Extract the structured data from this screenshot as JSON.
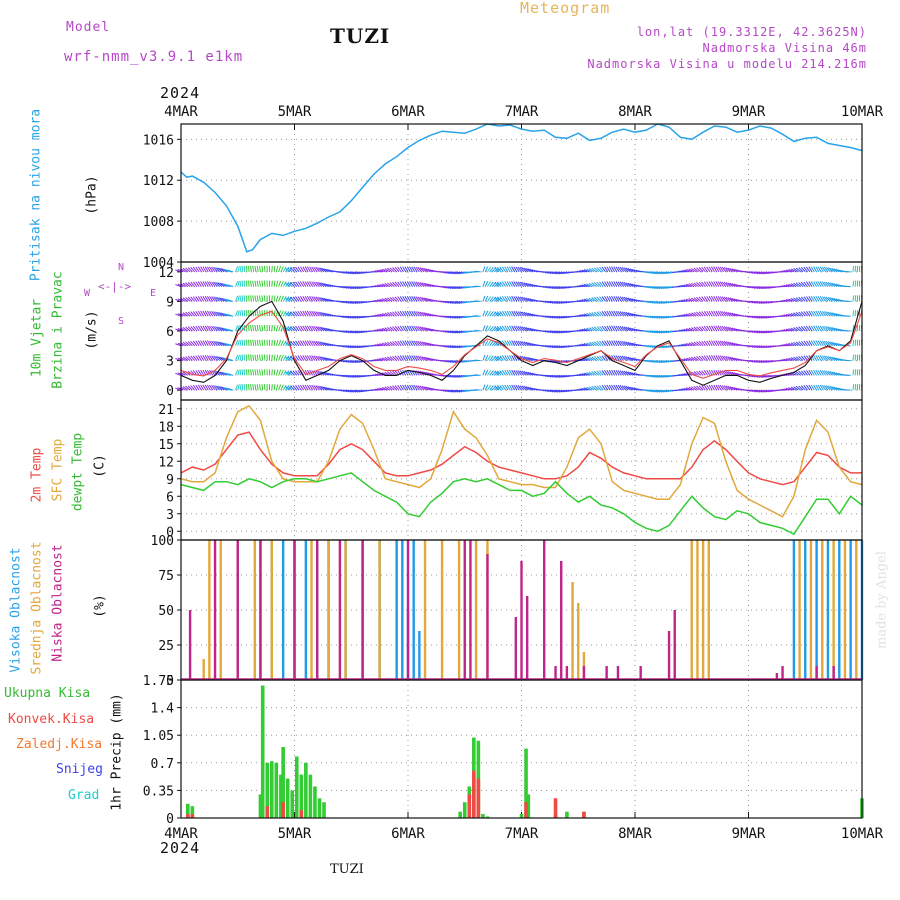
{
  "header": {
    "model_label": "Model",
    "model_name": "wrf-nmm_v3.9.1 e1km",
    "station": "TUZI",
    "meteogram": "Meteogram",
    "lonlat": "lon,lat (19.3312E, 42.3625N)",
    "elevation": "Nadmorska Visina 46m",
    "model_elevation": "Nadmorska Visina u modelu 214.216m",
    "year_top": "2024",
    "year_bottom": "2024",
    "footer_station": "TUZI",
    "watermark": "made by Angel"
  },
  "colors": {
    "pressure": "#29a3e8",
    "t2m": "#ef4a45",
    "sfc": "#e2a83c",
    "dewpt": "#33cc33",
    "high_cloud": "#1e9be6",
    "mid_cloud": "#e2a83c",
    "low_cloud": "#c0238a",
    "total_precip": "#33cc33",
    "conv_precip": "#ef4a45",
    "mix_precip": "#7a7a2a",
    "snow": "#4040ee",
    "grad": "#22cccc",
    "header_purple": "#b648c8",
    "meteogram": "#e6b45a"
  },
  "axis": {
    "x_ticks": [
      "4MAR",
      "5MAR",
      "6MAR",
      "7MAR",
      "8MAR",
      "9MAR",
      "10MAR"
    ]
  },
  "panels": {
    "pressure": {
      "label": "Pritisak na nivou mora",
      "unit": "(hPa)",
      "ticks": [
        "1016",
        "1012",
        "1008",
        "1004"
      ],
      "tick_values": [
        1016,
        1012,
        1008,
        1004
      ],
      "ylim": [
        1004,
        1017.5
      ]
    },
    "wind": {
      "label1": "10m Vjetar",
      "label2": "Brzina i Pravac",
      "unit": "(m/s)",
      "compass_n": "N",
      "compass_s": "S",
      "compass_w": "W",
      "compass_e": "E",
      "ticks": [
        "12",
        "9",
        "6",
        "3",
        "0"
      ],
      "tick_values": [
        12,
        9,
        6,
        3,
        0
      ],
      "ylim": [
        -1,
        13
      ]
    },
    "temp": {
      "label_t2m": "2m Temp",
      "label_sfc": "SFC Temp",
      "label_dew": "dewpt Temp",
      "unit": "(C)",
      "ticks": [
        "21",
        "18",
        "15",
        "12",
        "9",
        "6",
        "3",
        "0"
      ],
      "tick_values": [
        21,
        18,
        15,
        12,
        9,
        6,
        3,
        0
      ],
      "ylim": [
        -1.5,
        22.5
      ]
    },
    "cloud": {
      "label_high": "Visoka Oblacnost",
      "label_mid": "Srednja Oblacnost",
      "label_low": "Niska Oblacnost",
      "unit": "(%)",
      "ticks": [
        "100",
        "75",
        "50",
        "25",
        "0"
      ],
      "tick_values": [
        100,
        75,
        50,
        25,
        0
      ],
      "ylim": [
        0,
        100
      ]
    },
    "precip": {
      "label_total": "Ukupna Kisa",
      "label_conv": "Konvek.Kisa",
      "label_frozen": "Zaledj.Kisa",
      "label_snow": "Snijeg",
      "label_grad": "Grad",
      "unit": "1hr Precip (mm)",
      "ticks": [
        "1.75",
        "1.4",
        "1.05",
        "0.7",
        "0.35",
        "0"
      ],
      "tick_values": [
        1.75,
        1.4,
        1.05,
        0.7,
        0.35,
        0
      ],
      "ylim": [
        0,
        1.75
      ]
    }
  },
  "chart_data": {
    "type": "line",
    "x_unit": "days since 4MAR 00Z",
    "xlim": [
      0,
      6
    ],
    "pressure_hpa": {
      "x": [
        0,
        0.05,
        0.1,
        0.2,
        0.3,
        0.4,
        0.5,
        0.58,
        0.63,
        0.7,
        0.8,
        0.9,
        1.0,
        1.1,
        1.2,
        1.3,
        1.4,
        1.5,
        1.6,
        1.7,
        1.8,
        1.9,
        2.0,
        2.1,
        2.2,
        2.3,
        2.4,
        2.5,
        2.6,
        2.7,
        2.8,
        2.9,
        3.0,
        3.1,
        3.2,
        3.3,
        3.4,
        3.5,
        3.6,
        3.7,
        3.8,
        3.9,
        4.0,
        4.1,
        4.2,
        4.3,
        4.4,
        4.5,
        4.6,
        4.7,
        4.8,
        4.9,
        5.0,
        5.1,
        5.2,
        5.3,
        5.4,
        5.5,
        5.6,
        5.7,
        5.8,
        5.9,
        6.0
      ],
      "y": [
        1012.8,
        1012.3,
        1012.4,
        1011.8,
        1010.8,
        1009.5,
        1007.5,
        1005.0,
        1005.2,
        1006.2,
        1006.8,
        1006.6,
        1007.0,
        1007.3,
        1007.8,
        1008.4,
        1008.9,
        1010.0,
        1011.3,
        1012.6,
        1013.6,
        1014.3,
        1015.2,
        1015.9,
        1016.4,
        1016.8,
        1016.7,
        1016.6,
        1017.0,
        1017.5,
        1017.3,
        1017.4,
        1017.0,
        1016.8,
        1016.9,
        1016.2,
        1016.1,
        1016.6,
        1015.9,
        1016.1,
        1016.7,
        1017.0,
        1016.7,
        1016.9,
        1017.5,
        1017.2,
        1016.2,
        1016.0,
        1016.7,
        1017.3,
        1017.2,
        1016.7,
        1016.9,
        1017.3,
        1017.1,
        1016.5,
        1015.8,
        1016.1,
        1016.2,
        1015.6,
        1015.4,
        1015.2,
        1014.9
      ]
    },
    "wind_speed_ms": {
      "x": [
        0,
        0.1,
        0.2,
        0.3,
        0.4,
        0.5,
        0.6,
        0.7,
        0.8,
        0.9,
        1.0,
        1.1,
        1.2,
        1.3,
        1.4,
        1.5,
        1.6,
        1.7,
        1.8,
        1.9,
        2.0,
        2.1,
        2.2,
        2.3,
        2.4,
        2.5,
        2.6,
        2.7,
        2.8,
        2.9,
        3.0,
        3.1,
        3.2,
        3.3,
        3.4,
        3.5,
        3.6,
        3.7,
        3.8,
        3.9,
        4.0,
        4.1,
        4.2,
        4.3,
        4.4,
        4.5,
        4.6,
        4.7,
        4.8,
        4.9,
        5.0,
        5.1,
        5.2,
        5.3,
        5.4,
        5.5,
        5.6,
        5.7,
        5.8,
        5.9,
        6.0
      ],
      "y": [
        1.5,
        1.0,
        0.8,
        1.5,
        3.0,
        6.0,
        7.5,
        8.5,
        9.0,
        7.0,
        3.0,
        1.0,
        1.5,
        2.0,
        3.0,
        3.5,
        3.0,
        2.0,
        1.5,
        1.5,
        2.0,
        1.8,
        1.5,
        1.0,
        2.0,
        3.5,
        4.5,
        5.5,
        5.0,
        4.0,
        3.0,
        2.5,
        3.0,
        2.8,
        2.5,
        3.0,
        3.5,
        4.0,
        3.0,
        2.5,
        2.0,
        3.5,
        4.5,
        5.0,
        3.0,
        1.0,
        0.5,
        1.0,
        1.5,
        1.5,
        1.0,
        0.8,
        1.2,
        1.5,
        1.8,
        2.5,
        4.0,
        4.5,
        4.0,
        5.0,
        9.0
      ]
    },
    "temperature_c": {
      "x": [
        0,
        0.1,
        0.2,
        0.3,
        0.4,
        0.5,
        0.6,
        0.7,
        0.8,
        0.9,
        1.0,
        1.1,
        1.2,
        1.3,
        1.4,
        1.5,
        1.6,
        1.7,
        1.8,
        1.9,
        2.0,
        2.1,
        2.2,
        2.3,
        2.4,
        2.5,
        2.6,
        2.7,
        2.8,
        2.9,
        3.0,
        3.1,
        3.2,
        3.3,
        3.4,
        3.5,
        3.6,
        3.7,
        3.8,
        3.9,
        4.0,
        4.1,
        4.2,
        4.3,
        4.4,
        4.5,
        4.6,
        4.7,
        4.8,
        4.9,
        5.0,
        5.1,
        5.2,
        5.3,
        5.4,
        5.5,
        5.6,
        5.7,
        5.8,
        5.9,
        6.0
      ],
      "series": [
        {
          "name": "2m Temp",
          "values": [
            10.0,
            11.0,
            10.5,
            11.5,
            14.0,
            16.5,
            17.0,
            14.0,
            11.5,
            10.0,
            9.5,
            9.5,
            9.5,
            11.5,
            14.0,
            15.0,
            14.0,
            12.0,
            10.0,
            9.5,
            9.5,
            10.0,
            10.5,
            11.5,
            13.0,
            14.5,
            13.5,
            12.0,
            11.0,
            10.5,
            10.0,
            9.5,
            9.0,
            9.0,
            9.5,
            11.0,
            13.5,
            12.5,
            11.0,
            10.0,
            9.5,
            9.0,
            9.0,
            9.0,
            9.0,
            11.0,
            14.0,
            15.5,
            14.0,
            12.0,
            10.0,
            9.0,
            8.5,
            8.0,
            8.5,
            11.0,
            13.5,
            13.0,
            11.0,
            10.0,
            10.0
          ]
        },
        {
          "name": "SFC Temp",
          "values": [
            9.0,
            8.5,
            8.5,
            10.0,
            16.0,
            20.5,
            21.5,
            19.0,
            12.0,
            9.0,
            8.5,
            8.5,
            8.5,
            12.0,
            17.5,
            20.0,
            18.5,
            14.0,
            9.0,
            8.5,
            8.0,
            7.5,
            9.0,
            14.0,
            20.5,
            17.5,
            16.0,
            13.0,
            9.0,
            8.5,
            8.0,
            8.0,
            7.5,
            7.5,
            11.0,
            16.0,
            17.5,
            15.0,
            8.5,
            7.0,
            6.5,
            6.0,
            5.5,
            5.5,
            8.0,
            15.0,
            19.5,
            18.5,
            12.0,
            7.0,
            5.5,
            4.5,
            3.5,
            2.5,
            6.0,
            14.0,
            19.0,
            17.0,
            11.0,
            8.5,
            8.0
          ]
        },
        {
          "name": "dewpt Temp",
          "values": [
            8.0,
            7.5,
            7.0,
            8.5,
            8.5,
            8.0,
            9.0,
            8.5,
            7.5,
            8.5,
            9.0,
            9.0,
            8.5,
            9.0,
            9.5,
            10.0,
            8.5,
            7.0,
            6.0,
            5.0,
            3.0,
            2.5,
            5.0,
            6.5,
            8.5,
            9.0,
            8.5,
            9.0,
            8.0,
            7.0,
            7.0,
            6.0,
            6.5,
            8.5,
            6.5,
            5.0,
            6.0,
            4.5,
            4.0,
            3.0,
            1.5,
            0.5,
            0.0,
            1.0,
            3.5,
            6.0,
            4.0,
            2.5,
            2.0,
            3.5,
            3.0,
            1.5,
            1.0,
            0.5,
            -0.5,
            2.5,
            5.5,
            5.5,
            3.0,
            6.0,
            4.5
          ]
        }
      ]
    },
    "cloud_pct": {
      "series": [
        {
          "name": "Visoka Oblacnost",
          "x": [
            0.7,
            0.8,
            0.9,
            1.0,
            1.1,
            1.2,
            1.3,
            1.45,
            1.6,
            1.75,
            1.9,
            1.95,
            2.0,
            2.05,
            2.1,
            5.4,
            5.5,
            5.6,
            5.7,
            5.8,
            5.9,
            6.0
          ],
          "values": [
            100,
            100,
            100,
            100,
            100,
            100,
            100,
            100,
            100,
            100,
            100,
            100,
            50,
            100,
            35,
            100,
            100,
            100,
            100,
            100,
            100,
            100
          ]
        },
        {
          "name": "Srednja Oblacnost",
          "x": [
            0.2,
            0.25,
            0.35,
            0.5,
            0.65,
            0.8,
            1.0,
            1.15,
            1.3,
            1.45,
            1.6,
            1.75,
            2.15,
            2.3,
            2.45,
            2.6,
            2.7,
            3.45,
            3.5,
            3.55,
            4.5,
            4.55,
            4.6,
            4.65,
            5.45,
            5.55,
            5.65,
            5.75,
            5.85,
            5.95
          ],
          "values": [
            15,
            100,
            100,
            100,
            100,
            100,
            100,
            100,
            100,
            100,
            100,
            100,
            100,
            100,
            100,
            100,
            100,
            70,
            55,
            20,
            100,
            100,
            100,
            100,
            100,
            100,
            100,
            100,
            100,
            100
          ]
        },
        {
          "name": "Niska Oblacnost",
          "x": [
            0.08,
            0.3,
            0.5,
            0.7,
            1.0,
            1.2,
            1.4,
            1.6,
            2.0,
            2.5,
            2.55,
            2.7,
            2.95,
            3.0,
            3.05,
            3.2,
            3.3,
            3.35,
            3.4,
            3.55,
            3.75,
            3.85,
            4.05,
            4.3,
            4.35,
            5.25,
            5.3,
            5.6,
            5.75
          ],
          "values": [
            50,
            100,
            100,
            100,
            100,
            100,
            100,
            100,
            100,
            100,
            100,
            90,
            45,
            85,
            60,
            100,
            10,
            85,
            10,
            10,
            10,
            10,
            10,
            35,
            50,
            5,
            10,
            10,
            10
          ]
        }
      ]
    },
    "precip_mm": {
      "series": [
        {
          "name": "Ukupna Kisa",
          "x": [
            0.06,
            0.1,
            0.7,
            0.72,
            0.76,
            0.8,
            0.84,
            0.88,
            0.9,
            0.94,
            0.98,
            1.02,
            1.06,
            1.1,
            1.14,
            1.18,
            1.22,
            1.26,
            2.46,
            2.5,
            2.54,
            2.58,
            2.62,
            2.66,
            2.7,
            3.0,
            3.04,
            3.06,
            3.3,
            3.4,
            3.55,
            6.0
          ],
          "values": [
            0.18,
            0.15,
            0.3,
            1.68,
            0.7,
            0.72,
            0.7,
            0.55,
            0.9,
            0.5,
            0.35,
            0.78,
            0.55,
            0.7,
            0.55,
            0.4,
            0.25,
            0.2,
            0.08,
            0.2,
            0.4,
            1.02,
            0.98,
            0.05,
            0.02,
            0.05,
            0.88,
            0.3,
            0.05,
            0.08,
            0.08,
            0.25
          ]
        },
        {
          "name": "Konvek.Kisa",
          "x": [
            0.06,
            0.1,
            0.76,
            0.9,
            1.06,
            2.54,
            2.58,
            2.62,
            3.04,
            3.3,
            3.55
          ],
          "values": [
            0.05,
            0.05,
            0.15,
            0.2,
            0.1,
            0.3,
            0.6,
            0.5,
            0.2,
            0.25,
            0.08
          ]
        }
      ]
    }
  }
}
